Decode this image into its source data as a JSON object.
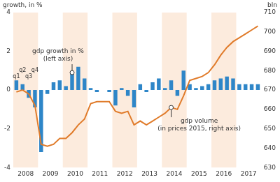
{
  "chart_data": {
    "type": "bar",
    "categories": [
      null,
      "2008",
      null,
      null,
      null,
      "2009",
      null,
      null,
      null,
      "2010",
      null,
      null,
      null,
      "2011",
      null,
      null,
      null,
      "2012",
      null,
      null,
      null,
      "2013",
      null,
      null,
      null,
      "2014",
      null,
      null,
      null,
      "2015",
      null,
      null,
      null,
      "2016",
      null,
      null,
      null,
      "2017",
      null,
      null
    ],
    "series": [
      {
        "name": "gdp growth in %",
        "type": "bar",
        "color": "#2e86c8",
        "values": [
          0.5,
          0.3,
          -0.4,
          -0.9,
          -3.2,
          -0.2,
          0.4,
          0.5,
          0.2,
          0.9,
          1.2,
          0.6,
          0.1,
          -0.1,
          0.0,
          -0.1,
          -0.8,
          0.1,
          -0.3,
          -0.9,
          0.3,
          -0.1,
          0.4,
          0.6,
          0.1,
          0.5,
          -0.3,
          1.0,
          0.3,
          0.1,
          0.2,
          0.3,
          0.5,
          0.6,
          0.7,
          0.6,
          0.3,
          0.3,
          0.3,
          0.3
        ]
      },
      {
        "name": "gdp volume",
        "type": "line",
        "color": "#e07b2a",
        "axis": "y2",
        "marker": "none",
        "values": [
          669,
          670,
          668,
          662,
          642,
          641,
          642,
          645,
          645,
          648,
          652,
          655,
          663,
          664,
          664,
          664,
          659,
          658,
          659,
          652,
          654,
          652,
          654,
          656,
          658,
          661,
          660,
          667,
          675,
          676,
          677,
          679,
          683,
          688,
          692,
          695,
          697,
          699,
          701,
          703
        ]
      }
    ],
    "ylabel": "growth, in %",
    "y2label": "bln",
    "ylim": [
      -4,
      4
    ],
    "yticks": [
      -4,
      -2,
      0,
      2,
      4
    ],
    "y2lim": [
      630,
      710
    ],
    "y2ticks": [
      630,
      640,
      650,
      660,
      670,
      680,
      690,
      700,
      710
    ],
    "grid": false,
    "annotations": [
      {
        "text": "q1",
        "series": "gdp growth in %",
        "index": 0
      },
      {
        "text": "q2",
        "series": "gdp growth in %",
        "index": 1
      },
      {
        "text": "q3",
        "series": "gdp growth in %",
        "index": 2
      },
      {
        "text": "q4",
        "series": "gdp growth in %",
        "index": 3
      },
      {
        "text": [
          "gdp growth in %",
          "(left axis)"
        ],
        "series": "gdp growth in %",
        "index": 9
      },
      {
        "text": [
          "gdp volume",
          "(in prices 2015, right axis)"
        ],
        "series": "gdp volume",
        "index": 25
      }
    ]
  }
}
